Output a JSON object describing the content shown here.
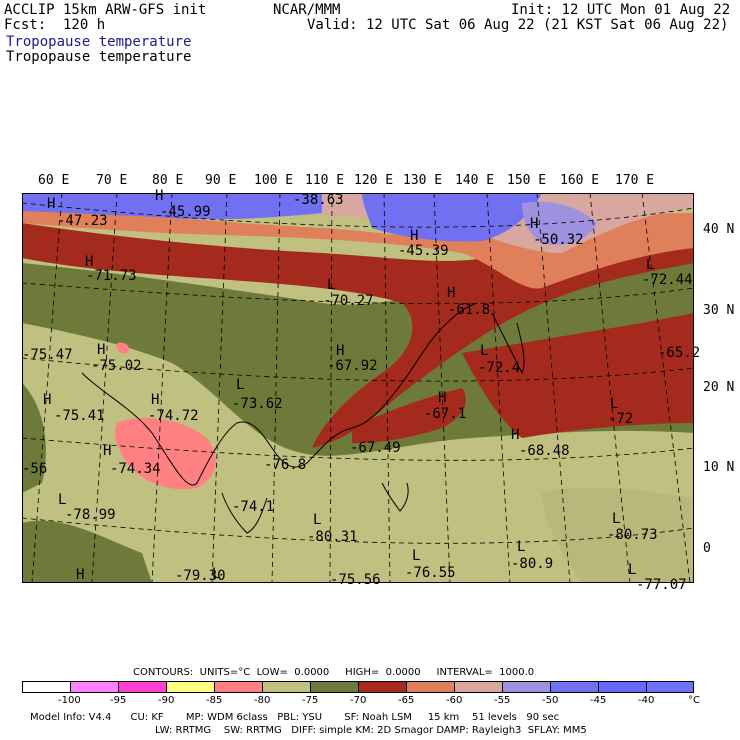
{
  "header": {
    "model": "ACCLIP 15km ARW-GFS init",
    "fcst": "Fcst:  120 h",
    "org": "NCAR/MMM",
    "init": "Init: 12 UTC Mon 01 Aug 22",
    "valid": "Valid: 12 UTC Sat 06 Aug 22 (21 KST Sat 06 Aug 22)",
    "field_title_1": "Tropopause temperature",
    "field_title_2": "Tropopause temperature"
  },
  "map": {
    "lon_labels": [
      "60 E",
      "70 E",
      "80 E",
      "90 E",
      "100 E",
      "110 E",
      "120 E",
      "130 E",
      "140 E",
      "150 E",
      "160 E",
      "170 E"
    ],
    "lat_labels": [
      "40 N",
      "30 N",
      "20 N",
      "10 N",
      "0"
    ],
    "annotations": [
      {
        "type": "H",
        "value": "-47.23"
      },
      {
        "type": "H",
        "value": "-45.99"
      },
      {
        "type": "H",
        "value": "-38.63"
      },
      {
        "type": "H",
        "value": "-45.39"
      },
      {
        "type": "H",
        "value": "-50.32"
      },
      {
        "type": "L",
        "value": "-72.44"
      },
      {
        "type": "H",
        "value": "-71.73"
      },
      {
        "type": "L",
        "value": "-70.27"
      },
      {
        "type": "H",
        "value": "-61.8"
      },
      {
        "type": "H",
        "value": "-75.47"
      },
      {
        "type": "H",
        "value": "-75.02"
      },
      {
        "type": "H",
        "value": "-67.92"
      },
      {
        "type": "L",
        "value": "-72.4"
      },
      {
        "type": "H",
        "value": "-65.2"
      },
      {
        "type": "H",
        "value": "-75.41"
      },
      {
        "type": "H",
        "value": "-74.72"
      },
      {
        "type": "L",
        "value": "-73.62"
      },
      {
        "type": "H",
        "value": "-67.1"
      },
      {
        "type": "L",
        "value": "-72"
      },
      {
        "type": "H",
        "value": "-74.34"
      },
      {
        "type": "H",
        "value": "-67.49"
      },
      {
        "type": "H",
        "value": "-68.48"
      },
      {
        "type": "L",
        "value": "-76.8"
      },
      {
        "type": "H",
        "value": "-56"
      },
      {
        "type": "L",
        "value": "-74.1"
      },
      {
        "type": "L",
        "value": "-78.99"
      },
      {
        "type": "L",
        "value": "-80.31"
      },
      {
        "type": "L",
        "value": "-80.73"
      },
      {
        "type": "L",
        "value": "-76.55"
      },
      {
        "type": "L",
        "value": "-80.9"
      },
      {
        "type": "H",
        "value": "-79.30"
      },
      {
        "type": "H",
        "value": "-75.56"
      },
      {
        "type": "L",
        "value": "-77.07"
      },
      {
        "type": "H",
        "value": ""
      },
      {
        "type": "L",
        "value": ""
      }
    ],
    "colors": {
      "band_lt_neg100": "#ffffff",
      "band_neg100_neg95": "#ff80ff",
      "band_neg95_neg90": "#ff40d0",
      "band_neg90_neg85": "#ffff80",
      "band_neg85_neg80": "#ff8080",
      "band_neg80_neg75": "#c0c080",
      "band_neg75_neg70": "#6e7a3a",
      "band_neg70_neg65": "#a52a1e",
      "band_neg65_neg60": "#e0805a",
      "band_neg60_neg55": "#d8a8a0",
      "band_neg55_neg50": "#a090e0",
      "band_neg50_neg45": "#7070f0",
      "band_neg45_neg40": "#6868ff",
      "band_gt_neg40": "#7070ff"
    }
  },
  "footer": {
    "contours_line": "CONTOURS:  UNITS=°C  LOW=  0.0000     HIGH=  0.0000     INTERVAL=  1000.0",
    "scale_ticks": [
      "-100",
      "-95",
      "-90",
      "-85",
      "-80",
      "-75",
      "-70",
      "-65",
      "-60",
      "-55",
      "-50",
      "-45",
      "-40",
      "°C"
    ],
    "model_info_1": "Model Info: V4.4      CU: KF       MP: WDM 6class   PBL: YSU       SF: Noah LSM     15 km    51 levels   90 sec",
    "model_info_2": "LW: RRTMG    SW: RRTMG   DIFF: simple KM: 2D Smagor DAMP: Rayleigh3  SFLAY: MM5"
  }
}
